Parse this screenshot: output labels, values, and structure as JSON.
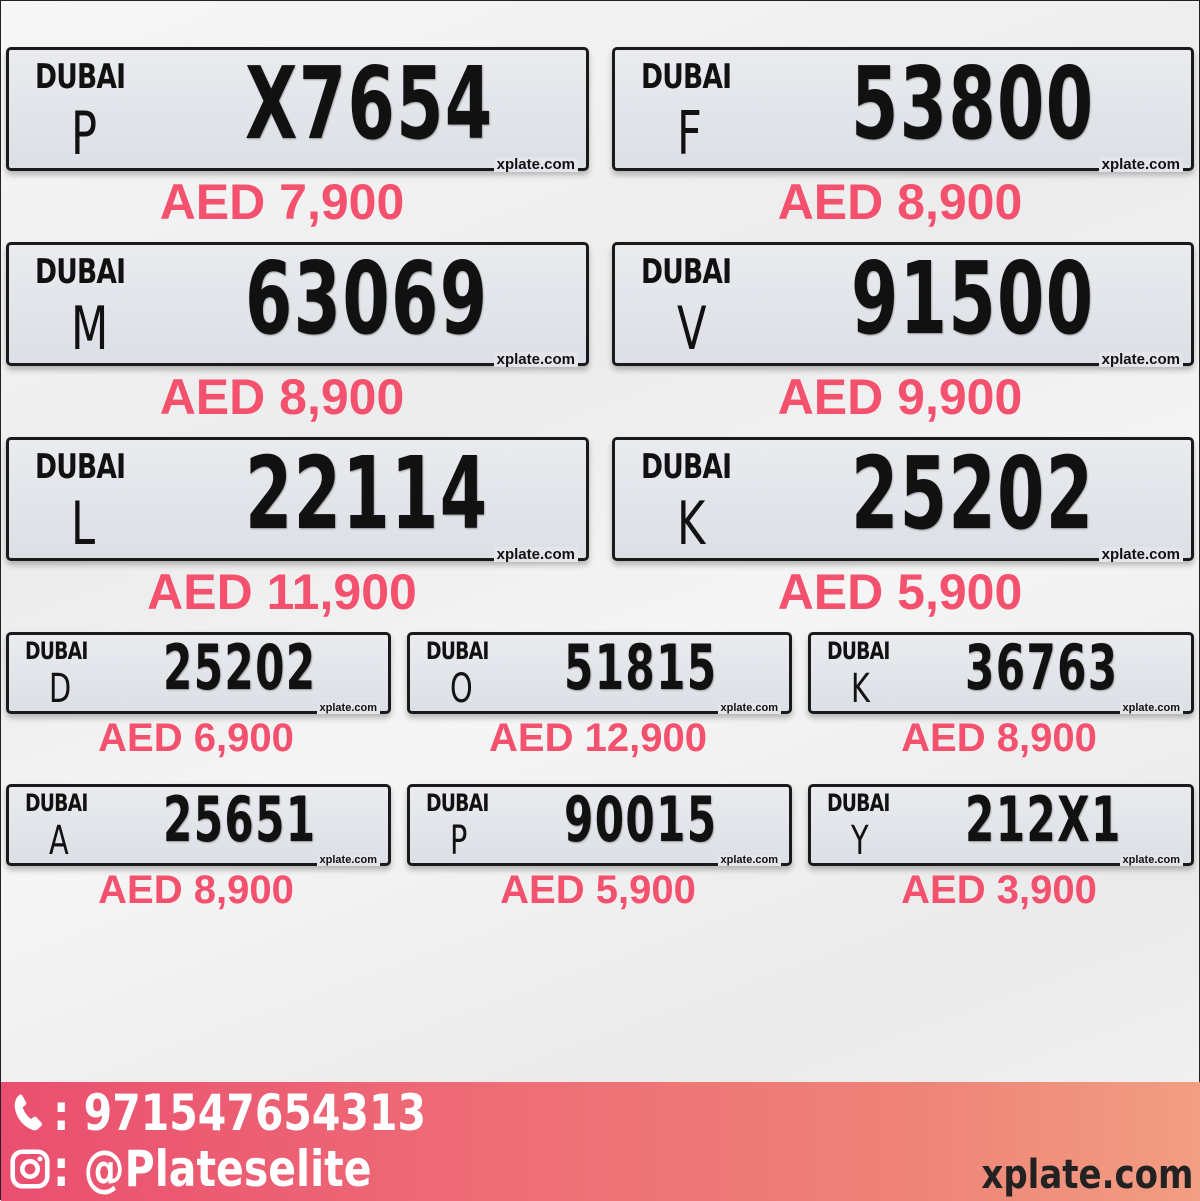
{
  "logo_text": "DUBAI",
  "watermark": "xplate.com",
  "accent_color": "#f4516f",
  "plates": [
    {
      "code": "P",
      "number": "X7654",
      "price": "AED 7,900"
    },
    {
      "code": "F",
      "number": "53800",
      "price": "AED 8,900"
    },
    {
      "code": "M",
      "number": "63069",
      "price": "AED 8,900"
    },
    {
      "code": "V",
      "number": "91500",
      "price": "AED 9,900"
    },
    {
      "code": "L",
      "number": "22114",
      "price": "AED 11,900"
    },
    {
      "code": "K",
      "number": "25202",
      "price": "AED 5,900"
    },
    {
      "code": "D",
      "number": "25202",
      "price": "AED 6,900"
    },
    {
      "code": "O",
      "number": "51815",
      "price": "AED 12,900"
    },
    {
      "code": "K",
      "number": "36763",
      "price": "AED 8,900"
    },
    {
      "code": "A",
      "number": "25651",
      "price": "AED 8,900"
    },
    {
      "code": "P",
      "number": "90015",
      "price": "AED 5,900"
    },
    {
      "code": "Y",
      "number": "212X1",
      "price": "AED 3,900"
    }
  ],
  "footer": {
    "phone_icon": "phone-icon",
    "phone": ": 971547654313",
    "instagram_icon": "instagram-icon",
    "instagram": ": @Plateselite",
    "site": "xplate.com"
  }
}
